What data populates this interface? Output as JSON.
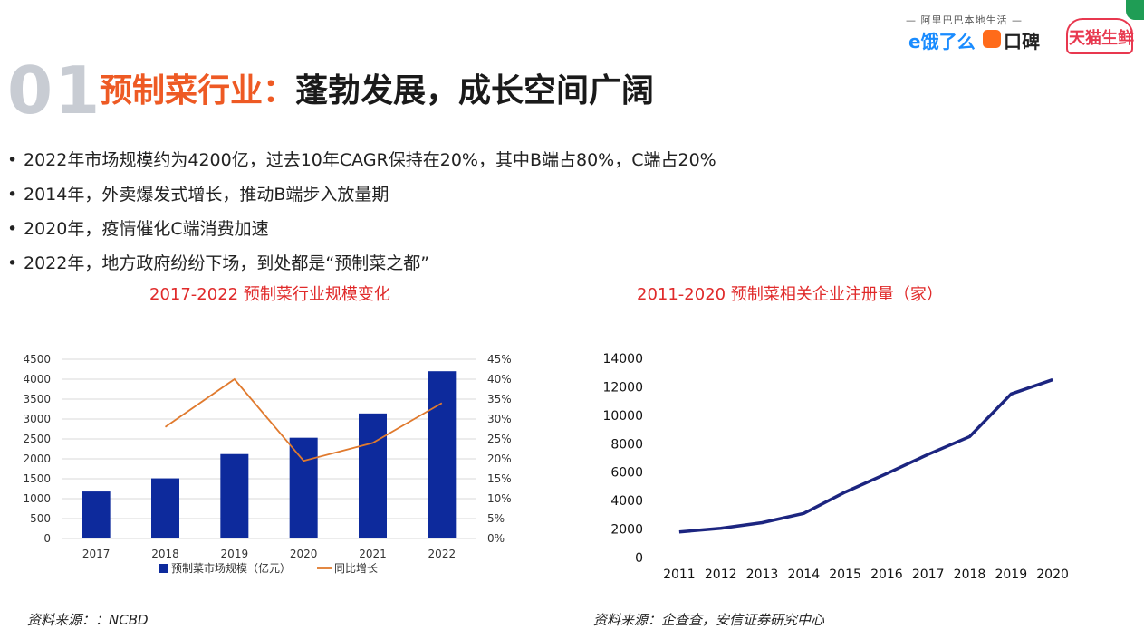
{
  "header": {
    "section_number": "01",
    "title_highlight": "预制菜行业：",
    "title_rest": "蓬勃发展，成长空间广阔"
  },
  "logos": {
    "tagline": "— 阿里巴巴本地生活 —",
    "eleme": "e饿了么",
    "koubei": "口碑",
    "tmall": "天猫生鲜"
  },
  "bullets": [
    "2022年市场规模约为4200亿，过去10年CAGR保持在20%，其中B端占80%，C端占20%",
    "2014年，外卖爆发式增长，推动B端步入放量期",
    "2020年，疫情催化C端消费加速",
    "2022年，地方政府纷纷下场，到处都是“预制菜之都”"
  ],
  "bullet_marker": "•",
  "chart_titles": {
    "left": "2017-2022 预制菜行业规模变化",
    "right": "2011-2020 预制菜相关企业注册量（家）"
  },
  "sources": {
    "left": "资料来源：：NCBD",
    "right": "资料来源：企查查，安信证券研究中心"
  },
  "colors": {
    "title_orange": "#ee5a24",
    "chart_title_red": "#e02a2a",
    "bar_blue": "#0d2a9c",
    "line_orange": "#e07a2e",
    "line_navy": "#1c2580",
    "section_gray": "#c8ccd3"
  },
  "chart_data": [
    {
      "type": "bar",
      "categories": [
        "2017",
        "2018",
        "2019",
        "2020",
        "2021",
        "2022"
      ],
      "series": [
        {
          "name": "预制菜市场规模（亿元）",
          "type": "bar",
          "axis": "left",
          "values": [
            1180,
            1510,
            2120,
            2530,
            3140,
            4200
          ]
        },
        {
          "name": "同比增长",
          "type": "line",
          "axis": "right",
          "values": [
            null,
            0.28,
            0.4,
            0.195,
            0.24,
            0.34
          ]
        }
      ],
      "y_left": {
        "lim": [
          0,
          4500
        ],
        "ticks": [
          0,
          500,
          1000,
          1500,
          2000,
          2500,
          3000,
          3500,
          4000,
          4500
        ]
      },
      "y_right": {
        "lim": [
          0,
          0.45
        ],
        "ticks": [
          "0%",
          "5%",
          "10%",
          "15%",
          "20%",
          "25%",
          "30%",
          "35%",
          "40%",
          "45%"
        ]
      },
      "grid": true,
      "legend": "bottom"
    },
    {
      "type": "line",
      "x": [
        "2011",
        "2012",
        "2013",
        "2014",
        "2015",
        "2016",
        "2017",
        "2018",
        "2019",
        "2020"
      ],
      "series": [
        {
          "values": [
            1800,
            2050,
            2450,
            3100,
            4600,
            5900,
            7250,
            8500,
            11500,
            12500
          ]
        }
      ],
      "ylim": [
        0,
        14000
      ],
      "y_ticks": [
        0,
        2000,
        4000,
        6000,
        8000,
        10000,
        12000,
        14000
      ],
      "grid": false
    }
  ]
}
